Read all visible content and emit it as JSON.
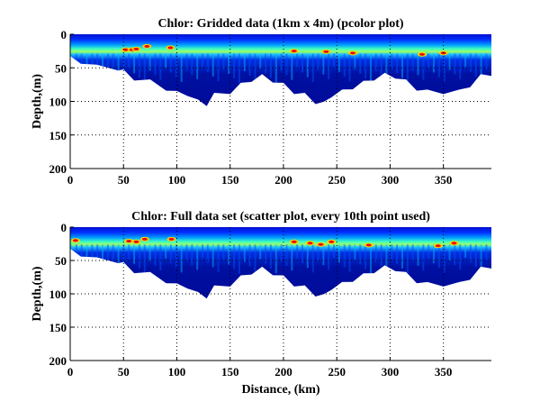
{
  "chart_data": [
    {
      "type": "heatmap",
      "title": "Chlor: Gridded data (1km x 4m) (pcolor plot)",
      "xlabel": "",
      "ylabel": "Depth,(m)",
      "xlim": [
        0,
        395
      ],
      "ylim": [
        0,
        200
      ],
      "y_reversed": true,
      "xticks": [
        0,
        50,
        100,
        150,
        200,
        250,
        300,
        350
      ],
      "yticks": [
        0,
        50,
        100,
        150,
        200
      ],
      "grid": true,
      "colormap": "jet",
      "chlorophyll_max_depth_m": 25,
      "bottom_profile": {
        "distance_km": [
          0,
          10,
          25,
          45,
          50,
          60,
          75,
          90,
          100,
          110,
          120,
          128,
          135,
          150,
          160,
          170,
          180,
          190,
          200,
          210,
          220,
          230,
          238,
          245,
          255,
          265,
          275,
          285,
          295,
          305,
          315,
          325,
          335,
          350,
          365,
          375,
          385,
          395
        ],
        "depth_m": [
          35,
          40,
          48,
          50,
          55,
          65,
          70,
          80,
          87,
          88,
          100,
          103,
          90,
          85,
          75,
          67,
          62,
          68,
          75,
          85,
          90,
          100,
          103,
          90,
          85,
          78,
          72,
          65,
          60,
          62,
          70,
          80,
          85,
          85,
          85,
          75,
          62,
          58
        ]
      },
      "hotspots": [
        [
          52,
          23
        ],
        [
          58,
          23
        ],
        [
          62,
          22
        ],
        [
          72,
          18
        ],
        [
          94,
          20
        ],
        [
          210,
          25
        ],
        [
          240,
          26
        ],
        [
          265,
          28
        ],
        [
          330,
          30
        ],
        [
          350,
          28
        ]
      ]
    },
    {
      "type": "scatter",
      "title": "Chlor: Full data set (scatter plot, every 10th point used)",
      "xlabel": "Distance, (km)",
      "ylabel": "Depth,(m)",
      "xlim": [
        0,
        395
      ],
      "ylim": [
        0,
        200
      ],
      "y_reversed": true,
      "xticks": [
        0,
        50,
        100,
        150,
        200,
        250,
        300,
        350
      ],
      "yticks": [
        0,
        50,
        100,
        150,
        200
      ],
      "grid": true,
      "colormap": "jet",
      "chlorophyll_max_depth_m": 22,
      "bottom_profile": {
        "distance_km": [
          0,
          10,
          25,
          45,
          50,
          60,
          75,
          90,
          100,
          110,
          120,
          128,
          135,
          150,
          160,
          170,
          180,
          190,
          200,
          210,
          220,
          230,
          238,
          245,
          255,
          265,
          275,
          285,
          295,
          305,
          315,
          325,
          335,
          350,
          365,
          375,
          385,
          395
        ],
        "depth_m": [
          35,
          40,
          48,
          50,
          55,
          65,
          70,
          80,
          87,
          88,
          100,
          103,
          90,
          85,
          75,
          67,
          62,
          68,
          75,
          85,
          90,
          100,
          103,
          90,
          85,
          78,
          72,
          65,
          60,
          62,
          70,
          80,
          85,
          85,
          85,
          75,
          62,
          58
        ]
      },
      "hotspots": [
        [
          5,
          20
        ],
        [
          55,
          21
        ],
        [
          62,
          22
        ],
        [
          70,
          18
        ],
        [
          95,
          18
        ],
        [
          210,
          22
        ],
        [
          225,
          24
        ],
        [
          235,
          26
        ],
        [
          245,
          22
        ],
        [
          280,
          27
        ],
        [
          345,
          28
        ],
        [
          360,
          24
        ]
      ]
    }
  ]
}
